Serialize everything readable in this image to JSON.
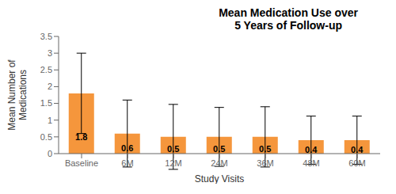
{
  "chart_data": {
    "type": "bar",
    "title": "Mean Medication Use over\n5 Years of Follow-up",
    "xlabel": "Study Visits",
    "ylabel": "Mean Number of\nMedications",
    "categories": [
      "Baseline",
      "6M",
      "12M",
      "24M",
      "36M",
      "48M",
      "60M"
    ],
    "values": [
      1.8,
      0.6,
      0.5,
      0.5,
      0.5,
      0.4,
      0.4
    ],
    "errors": [
      1.2,
      1.0,
      0.97,
      0.88,
      0.9,
      0.72,
      0.72
    ],
    "color": "#F5963C",
    "ylim": [
      0,
      3.5
    ],
    "yticks": [
      0,
      0.5,
      1,
      1.5,
      2,
      2.5,
      3,
      3.5
    ],
    "grid": false,
    "data_labels": true
  }
}
